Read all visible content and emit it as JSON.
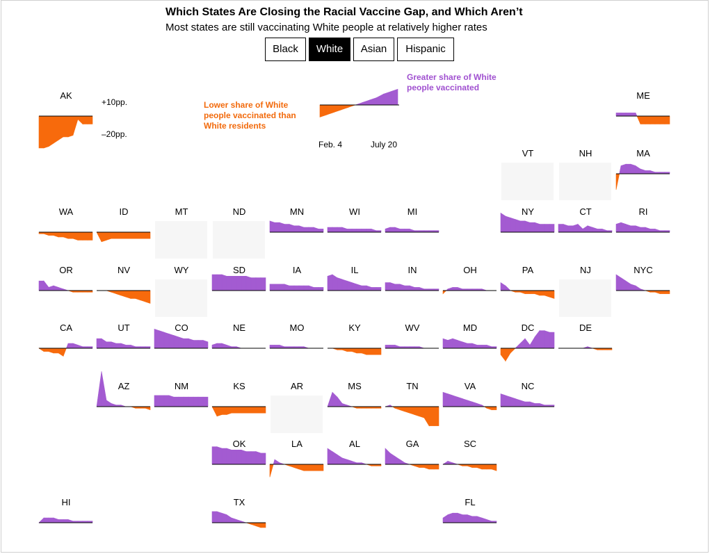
{
  "header": {
    "title": "Which States Are Closing the Racial Vaccine Gap, and Which Aren’t",
    "subtitle": "Most states are still vaccinating White people at relatively higher rates"
  },
  "toggles": [
    {
      "label": "Black",
      "active": false
    },
    {
      "label": "White",
      "active": true
    },
    {
      "label": "Asian",
      "active": false
    },
    {
      "label": "Hispanic",
      "active": false
    }
  ],
  "colors": {
    "positive": "#a35bd1",
    "negative": "#f76a0c",
    "no_data": "#f6f6f6",
    "axis": "#000000"
  },
  "legend": {
    "scale_top": "+10pp.",
    "scale_bottom": "–20pp.",
    "positive_note": "Greater share of White people vaccinated",
    "negative_note": "Lower share of White people vaccinated than White residents",
    "x_start": "Feb. 4",
    "x_end": "July 20"
  },
  "chart_data": {
    "type": "area",
    "title": "Which States Are Closing the Racial Vaccine Gap, and Which Aren’t",
    "subtitle": "Most states are still vaccinating White people at relatively higher rates",
    "x_range": [
      "Feb. 4",
      "July 20"
    ],
    "y_unit": "pp.",
    "y_ticks": [
      10,
      -20
    ],
    "example_series": [
      -10,
      -8,
      -6,
      -4,
      -2,
      0,
      2,
      4,
      6,
      9,
      11,
      13
    ],
    "states": [
      {
        "abbr": "AK",
        "values": [
          -20,
          -20,
          -19,
          -17,
          -15,
          -13,
          -13,
          -12,
          -2,
          -5,
          -5,
          -5
        ]
      },
      {
        "abbr": "ME",
        "values": [
          2,
          2,
          2,
          2,
          2,
          -5,
          -5,
          -5,
          -5,
          -5,
          -5,
          -5
        ]
      },
      {
        "abbr": "VT",
        "values": null
      },
      {
        "abbr": "NH",
        "values": null
      },
      {
        "abbr": "MA",
        "values": [
          -10,
          5,
          6,
          6,
          5,
          3,
          2,
          2,
          1,
          1,
          1,
          1
        ]
      },
      {
        "abbr": "WA",
        "values": [
          -1,
          -1,
          -2,
          -2,
          -3,
          -3,
          -4,
          -4,
          -5,
          -5,
          -5,
          -5
        ]
      },
      {
        "abbr": "ID",
        "values": [
          0,
          -6,
          -5,
          -4,
          -4,
          -4,
          -4,
          -4,
          -4,
          -4,
          -4,
          -4
        ]
      },
      {
        "abbr": "MT",
        "values": null
      },
      {
        "abbr": "ND",
        "values": null
      },
      {
        "abbr": "MN",
        "values": [
          7,
          6,
          6,
          5,
          5,
          4,
          4,
          3,
          3,
          3,
          2,
          2
        ]
      },
      {
        "abbr": "WI",
        "values": [
          3,
          3,
          3,
          3,
          2,
          2,
          2,
          2,
          2,
          2,
          1,
          1
        ]
      },
      {
        "abbr": "MI",
        "values": [
          2,
          3,
          3,
          2,
          2,
          2,
          1,
          1,
          1,
          1,
          1,
          1
        ]
      },
      {
        "abbr": "NY",
        "values": [
          12,
          10,
          9,
          8,
          7,
          7,
          6,
          6,
          5,
          5,
          5,
          5
        ]
      },
      {
        "abbr": "CT",
        "values": [
          5,
          5,
          4,
          4,
          5,
          2,
          4,
          3,
          2,
          2,
          1,
          1
        ]
      },
      {
        "abbr": "RI",
        "values": [
          5,
          6,
          5,
          4,
          4,
          3,
          3,
          2,
          2,
          1,
          1,
          1
        ]
      },
      {
        "abbr": "OR",
        "values": [
          6,
          6,
          2,
          3,
          2,
          1,
          0,
          -1,
          -1,
          -1,
          -1,
          -1
        ]
      },
      {
        "abbr": "NV",
        "values": [
          0,
          0,
          0,
          -1,
          -2,
          -3,
          -4,
          -5,
          -5,
          -6,
          -7,
          -8
        ]
      },
      {
        "abbr": "WY",
        "values": null
      },
      {
        "abbr": "SD",
        "values": [
          10,
          10,
          10,
          9,
          9,
          9,
          9,
          9,
          8,
          8,
          8,
          8
        ]
      },
      {
        "abbr": "IA",
        "values": [
          4,
          4,
          4,
          4,
          3,
          3,
          3,
          3,
          3,
          2,
          2,
          2
        ]
      },
      {
        "abbr": "IL",
        "values": [
          9,
          10,
          8,
          7,
          6,
          5,
          4,
          3,
          3,
          2,
          2,
          2
        ]
      },
      {
        "abbr": "IN",
        "values": [
          5,
          5,
          4,
          4,
          3,
          3,
          2,
          2,
          1,
          1,
          1,
          1
        ]
      },
      {
        "abbr": "OH",
        "values": [
          -2,
          1,
          2,
          2,
          1,
          1,
          1,
          1,
          1,
          0,
          0,
          0
        ]
      },
      {
        "abbr": "PA",
        "values": [
          5,
          3,
          0,
          -1,
          -1,
          -2,
          -2,
          -2,
          -3,
          -3,
          -4,
          -5
        ]
      },
      {
        "abbr": "NJ",
        "values": null
      },
      {
        "abbr": "NYC",
        "values": [
          10,
          8,
          6,
          4,
          3,
          1,
          0,
          -1,
          -1,
          -2,
          -2,
          -2
        ]
      },
      {
        "abbr": "CA",
        "values": [
          0,
          -2,
          -2,
          -3,
          -3,
          -5,
          3,
          3,
          2,
          1,
          1,
          1
        ]
      },
      {
        "abbr": "UT",
        "values": [
          6,
          6,
          4,
          4,
          3,
          3,
          2,
          2,
          1,
          1,
          1,
          1
        ]
      },
      {
        "abbr": "CO",
        "values": [
          12,
          11,
          10,
          9,
          8,
          7,
          6,
          6,
          5,
          5,
          5,
          4
        ]
      },
      {
        "abbr": "NE",
        "values": [
          2,
          3,
          3,
          2,
          1,
          1,
          0,
          0,
          0,
          0,
          0,
          0
        ]
      },
      {
        "abbr": "MO",
        "values": [
          2,
          2,
          2,
          1,
          1,
          1,
          1,
          1,
          0,
          0,
          0,
          0
        ]
      },
      {
        "abbr": "KY",
        "values": [
          0,
          0,
          -1,
          -1,
          -2,
          -2,
          -3,
          -3,
          -4,
          -4,
          -4,
          -4
        ]
      },
      {
        "abbr": "WV",
        "values": [
          2,
          2,
          2,
          1,
          1,
          1,
          1,
          1,
          0,
          0,
          0,
          0
        ]
      },
      {
        "abbr": "MD",
        "values": [
          6,
          5,
          6,
          5,
          4,
          3,
          3,
          2,
          2,
          2,
          1,
          1
        ]
      },
      {
        "abbr": "DC",
        "values": [
          -4,
          -8,
          -3,
          0,
          3,
          6,
          2,
          7,
          11,
          11,
          10,
          10
        ]
      },
      {
        "abbr": "DE",
        "values": [
          0,
          0,
          0,
          0,
          0,
          0,
          1,
          0,
          -1,
          -1,
          -1,
          -1
        ]
      },
      {
        "abbr": "AZ",
        "values": [
          0,
          22,
          4,
          2,
          1,
          1,
          0,
          0,
          -1,
          -1,
          -1,
          -2
        ]
      },
      {
        "abbr": "NM",
        "values": [
          7,
          7,
          7,
          7,
          6,
          6,
          6,
          6,
          6,
          6,
          6,
          6
        ]
      },
      {
        "abbr": "KS",
        "values": [
          0,
          -6,
          -5,
          -5,
          -4,
          -4,
          -4,
          -4,
          -4,
          -4,
          -4,
          -4
        ]
      },
      {
        "abbr": "AR",
        "values": null
      },
      {
        "abbr": "MS",
        "values": [
          0,
          9,
          6,
          2,
          1,
          0,
          -1,
          -1,
          -1,
          -1,
          -1,
          -1
        ]
      },
      {
        "abbr": "TN",
        "values": [
          0,
          1,
          -1,
          -2,
          -3,
          -4,
          -5,
          -6,
          -7,
          -12,
          -12,
          -12
        ]
      },
      {
        "abbr": "VA",
        "values": [
          9,
          8,
          7,
          6,
          5,
          4,
          3,
          2,
          1,
          -1,
          -2,
          -2
        ]
      },
      {
        "abbr": "NC",
        "values": [
          8,
          7,
          6,
          5,
          4,
          3,
          3,
          2,
          2,
          1,
          1,
          1
        ]
      },
      {
        "abbr": "OK",
        "values": [
          11,
          11,
          10,
          10,
          9,
          9,
          9,
          8,
          8,
          8,
          7,
          7
        ]
      },
      {
        "abbr": "LA",
        "values": [
          -8,
          3,
          1,
          0,
          -1,
          -2,
          -3,
          -4,
          -4,
          -4,
          -4,
          -4
        ]
      },
      {
        "abbr": "AL",
        "values": [
          10,
          8,
          6,
          4,
          3,
          2,
          1,
          1,
          0,
          -1,
          -1,
          -1
        ]
      },
      {
        "abbr": "GA",
        "values": [
          10,
          7,
          5,
          3,
          1,
          0,
          -1,
          -2,
          -2,
          -3,
          -3,
          -3
        ]
      },
      {
        "abbr": "SC",
        "values": [
          0,
          2,
          1,
          0,
          -1,
          -1,
          -2,
          -2,
          -3,
          -3,
          -3,
          -4
        ]
      },
      {
        "abbr": "HI",
        "values": [
          0,
          3,
          3,
          3,
          2,
          2,
          2,
          1,
          1,
          1,
          1,
          1
        ]
      },
      {
        "abbr": "TX",
        "values": [
          7,
          7,
          6,
          5,
          3,
          2,
          1,
          0,
          -1,
          -2,
          -3,
          -3
        ]
      },
      {
        "abbr": "FL",
        "values": [
          3,
          5,
          6,
          6,
          5,
          5,
          4,
          4,
          3,
          2,
          1,
          1
        ]
      }
    ]
  }
}
